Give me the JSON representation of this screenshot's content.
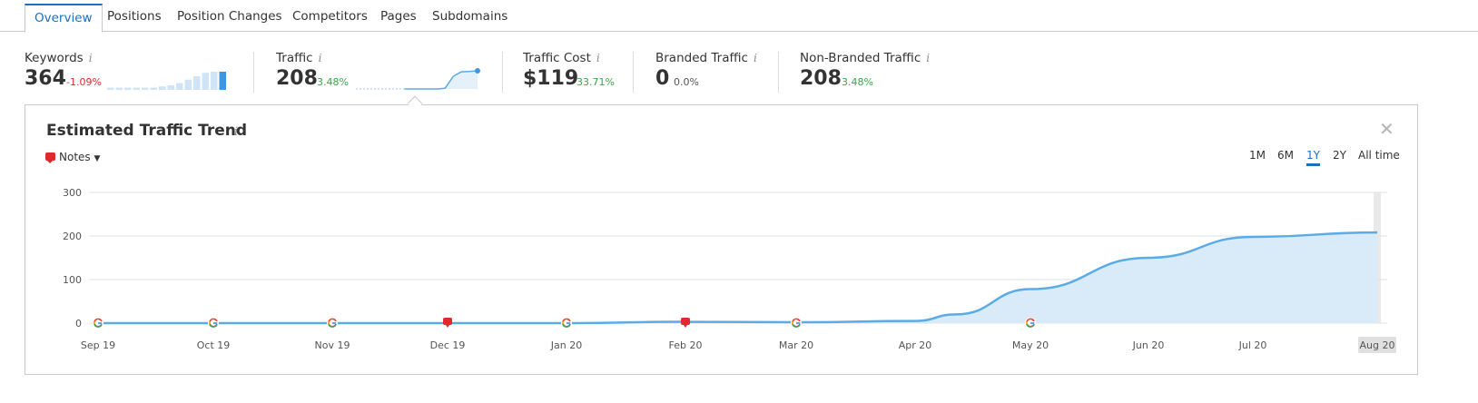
{
  "tabs": [
    {
      "label": "Overview",
      "active": true
    },
    {
      "label": "Positions"
    },
    {
      "label": "Position Changes"
    },
    {
      "label": "Competitors"
    },
    {
      "label": "Pages"
    },
    {
      "label": "Subdomains"
    }
  ],
  "metrics": [
    {
      "label": "Keywords",
      "value": "364",
      "change": "-1.09%",
      "trend": "negative"
    },
    {
      "label": "Traffic",
      "value": "208",
      "change": "3.48%",
      "trend": "positive"
    },
    {
      "label": "Traffic Cost",
      "value": "$119",
      "change": "33.71%",
      "trend": "positive"
    },
    {
      "label": "Branded Traffic",
      "value": "0",
      "change": "0.0%",
      "trend": "neutral"
    },
    {
      "label": "Non-Branded Traffic",
      "value": "208",
      "change": "3.48%",
      "trend": "positive"
    }
  ],
  "info_glyph": "i",
  "keywords_sparkline": [
    2,
    2,
    2,
    2,
    2,
    2,
    3,
    4,
    6,
    9,
    12,
    15,
    16,
    16
  ],
  "traffic_sparkline": [
    0,
    0,
    0,
    0,
    0,
    0,
    0,
    0,
    0,
    0,
    0.3,
    4,
    72,
    98,
    100,
    104
  ],
  "panel": {
    "title": "Estimated Traffic Trend",
    "notes_label": "Notes",
    "close_glyph": "✕",
    "ranges": [
      {
        "label": "1M"
      },
      {
        "label": "6M"
      },
      {
        "label": "1Y",
        "active": true
      },
      {
        "label": "2Y"
      },
      {
        "label": "All time"
      }
    ]
  },
  "colors": {
    "accent": "#1a6fc4",
    "line": "#5aabe6",
    "area": "#d9ebf9",
    "negative": "#e0292c",
    "positive": "#3aa54a"
  },
  "chart_data": {
    "type": "area",
    "title": "Estimated Traffic Trend",
    "x": [
      "Sep 19",
      "Oct 19",
      "Nov 19",
      "Dec 19",
      "Jan 20",
      "Feb 20",
      "Mar 20",
      "Apr 20",
      "Apr 20b",
      "May 20",
      "Jun 20",
      "Jul 20",
      "Aug 20"
    ],
    "x_ticks": [
      "Sep 19",
      "Oct 19",
      "Nov 19",
      "Dec 19",
      "Jan 20",
      "Feb 20",
      "Mar 20",
      "Apr 20",
      "May 20",
      "Jun 20",
      "Jul 20",
      "Aug 20"
    ],
    "ylim": [
      0,
      300
    ],
    "y_ticks": [
      0,
      100,
      200,
      300
    ],
    "series": [
      {
        "values": [
          {
            "month": "Sep 19",
            "value": 0
          },
          {
            "month": "Oct 19",
            "value": 0
          },
          {
            "month": "Nov 19",
            "value": 0
          },
          {
            "month": "Dec 19",
            "value": 0
          },
          {
            "month": "Jan 20",
            "value": 0
          },
          {
            "month": "Feb 20",
            "value": 3
          },
          {
            "month": "Mar 20",
            "value": 2
          },
          {
            "month": "Apr 20",
            "value": 5
          },
          {
            "month": "Apr 20+",
            "value": 20
          },
          {
            "month": "May 20",
            "value": 78
          },
          {
            "month": "Jun 20",
            "value": 150
          },
          {
            "month": "Jul 20",
            "value": 198
          },
          {
            "month": "Aug 20",
            "value": 208
          }
        ]
      }
    ],
    "google_markers": [
      "Sep 19",
      "Oct 19",
      "Nov 19",
      "Jan 20",
      "Mar 20",
      "May 20"
    ],
    "note_markers": [
      "Dec 19",
      "Feb 20"
    ],
    "highlighted_x": "Aug 20",
    "grid": true
  }
}
